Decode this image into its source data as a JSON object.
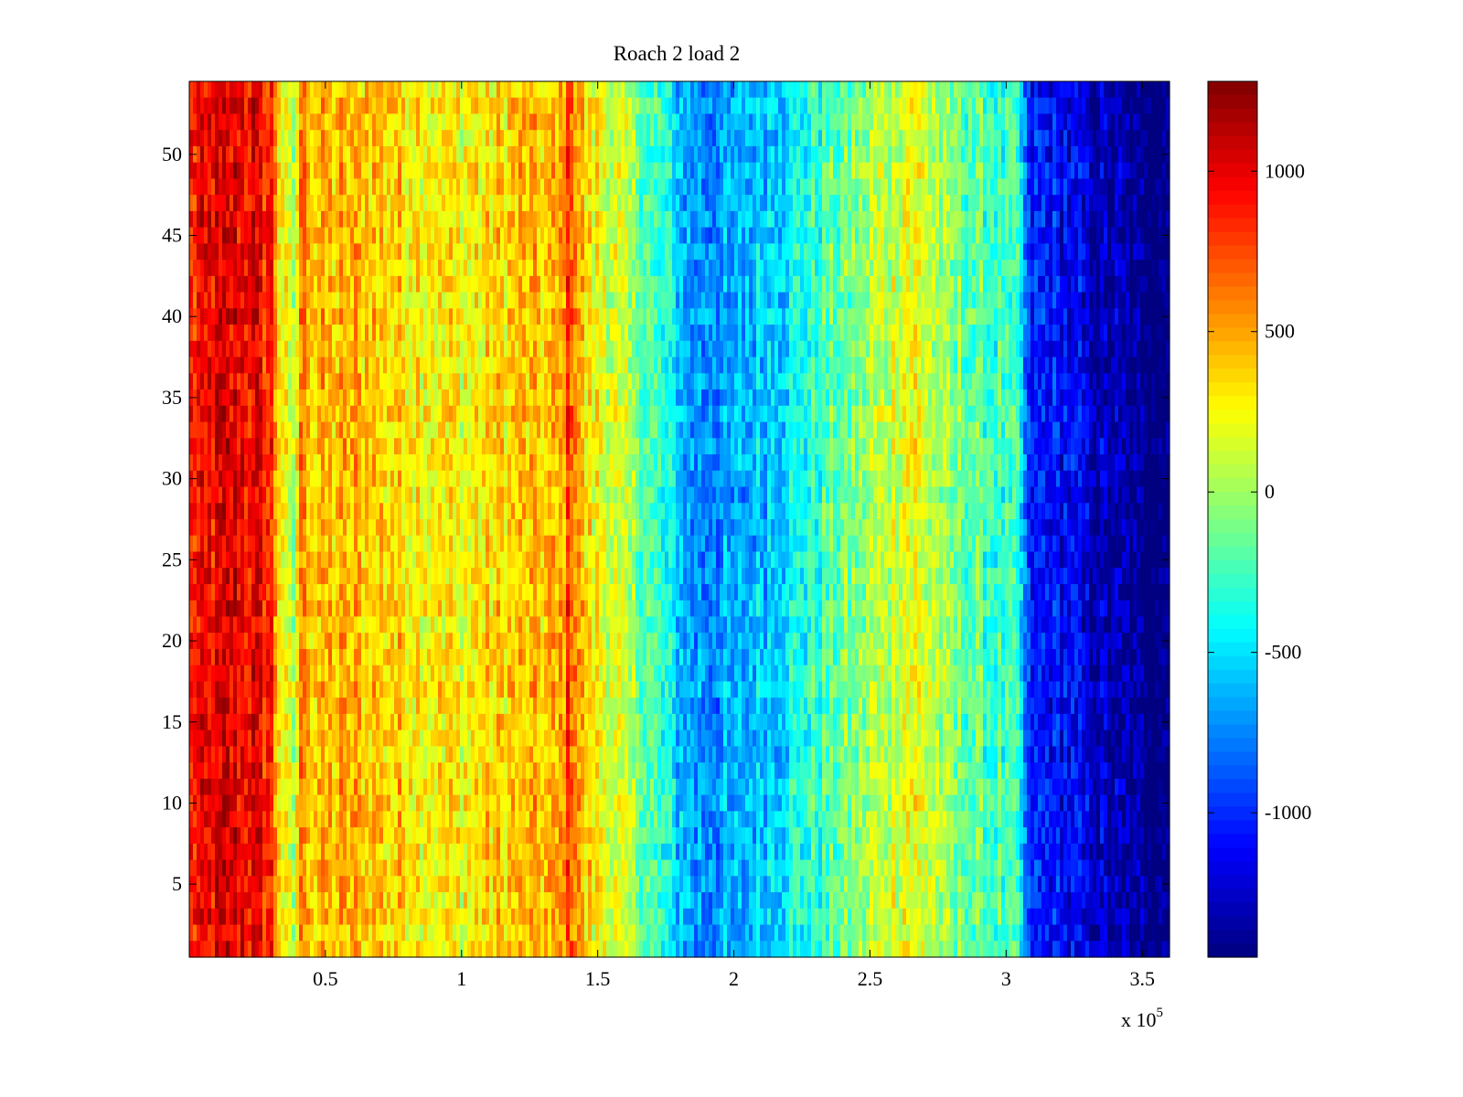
{
  "chart_data": {
    "type": "heatmap",
    "title": "Roach 2 load 2",
    "xlabel": "",
    "ylabel": "",
    "x_multiplier_label": {
      "base": "x 10",
      "exponent": "5"
    },
    "xlim": [
      0,
      360000
    ],
    "ylim": [
      0.5,
      54.5
    ],
    "rows": 54,
    "x_ticks": [
      {
        "value": 50000,
        "label": "0.5"
      },
      {
        "value": 100000,
        "label": "1"
      },
      {
        "value": 150000,
        "label": "1.5"
      },
      {
        "value": 200000,
        "label": "2"
      },
      {
        "value": 250000,
        "label": "2.5"
      },
      {
        "value": 300000,
        "label": "3"
      },
      {
        "value": 350000,
        "label": "3.5"
      }
    ],
    "y_ticks": [
      {
        "value": 5,
        "label": "5"
      },
      {
        "value": 10,
        "label": "10"
      },
      {
        "value": 15,
        "label": "15"
      },
      {
        "value": 20,
        "label": "20"
      },
      {
        "value": 25,
        "label": "25"
      },
      {
        "value": 30,
        "label": "30"
      },
      {
        "value": 35,
        "label": "35"
      },
      {
        "value": 40,
        "label": "40"
      },
      {
        "value": 45,
        "label": "45"
      },
      {
        "value": 50,
        "label": "50"
      }
    ],
    "colorbar": {
      "colormap": "jet",
      "range": [
        -1450,
        1280
      ],
      "ticks": [
        {
          "value": 1000,
          "label": "1000"
        },
        {
          "value": 500,
          "label": "500"
        },
        {
          "value": 0,
          "label": "0"
        },
        {
          "value": -500,
          "label": "-500"
        },
        {
          "value": -1000,
          "label": "-1000"
        }
      ]
    },
    "column_profile": {
      "x": [
        0,
        10000,
        20000,
        30000,
        33000,
        38000,
        42000,
        45000,
        60000,
        80000,
        100000,
        120000,
        135000,
        140000,
        145000,
        160000,
        170000,
        185000,
        200000,
        215000,
        230000,
        250000,
        265000,
        280000,
        300000,
        305000,
        308000,
        320000,
        335000,
        350000,
        360000
      ],
      "mean": [
        850,
        980,
        1000,
        850,
        350,
        0,
        700,
        400,
        450,
        350,
        250,
        400,
        400,
        800,
        350,
        50,
        -250,
        -700,
        -700,
        -500,
        -300,
        0,
        250,
        -100,
        -300,
        -350,
        -1050,
        -1100,
        -1300,
        -1450,
        -1450
      ]
    }
  }
}
